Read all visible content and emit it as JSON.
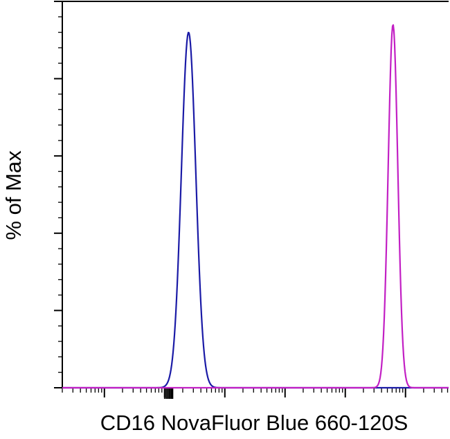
{
  "chart_data": {
    "type": "line",
    "title": "",
    "xlabel": "CD16 NovaFluor Blue 660-120S",
    "ylabel": "% of Max",
    "x_scale": "log",
    "xlim": [
      0.2,
      520000
    ],
    "ylim": [
      0,
      100
    ],
    "grid": false,
    "legend": "none",
    "x_tick_labels_shown": false,
    "y_tick_labels_shown": false,
    "series": [
      {
        "color": "#1a1aa6",
        "peak_x": 25,
        "peak_y": 92,
        "spread_log10": 0.12
      },
      {
        "color": "#c21fc4",
        "peak_x": 62000,
        "peak_y": 94,
        "spread_log10": 0.08
      }
    ]
  }
}
